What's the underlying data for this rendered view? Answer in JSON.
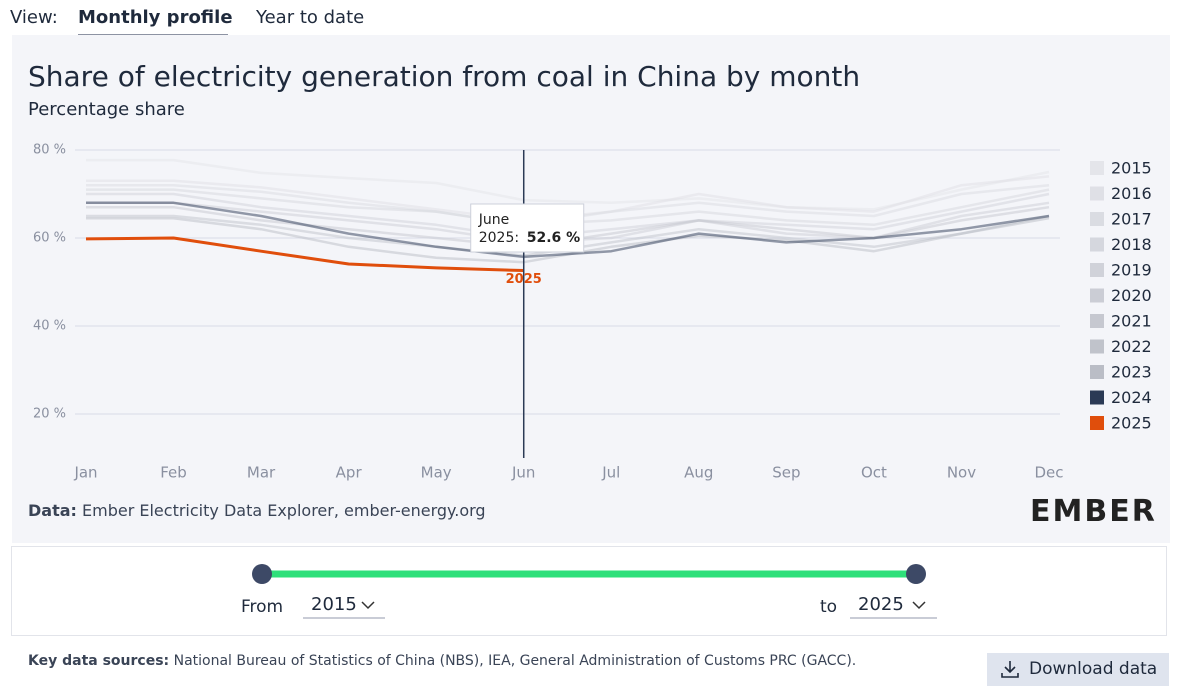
{
  "view": {
    "label": "View:",
    "tabs": [
      "Monthly profile",
      "Year to date"
    ]
  },
  "chart_data": {
    "type": "line",
    "title": "Share of electricity generation from coal in China by month",
    "subtitle": "Percentage share",
    "categories": [
      "Jan",
      "Feb",
      "Mar",
      "Apr",
      "May",
      "Jun",
      "Jul",
      "Aug",
      "Sep",
      "Oct",
      "Nov",
      "Dec"
    ],
    "series": [
      {
        "name": "2015",
        "color": "#e4e5ea",
        "values": [
          77.7,
          77.7,
          74.8,
          73.6,
          72.5,
          68.6,
          68.0,
          69.0,
          67.0,
          66.5,
          71.0,
          75.0
        ]
      },
      {
        "name": "2016",
        "color": "#dfe0e6",
        "values": [
          73,
          73,
          71.5,
          69,
          66.5,
          64,
          66,
          70,
          67,
          66,
          72,
          74
        ]
      },
      {
        "name": "2017",
        "color": "#dadce2",
        "values": [
          72,
          72,
          70.5,
          68,
          66,
          63,
          66,
          68,
          66,
          65,
          70,
          72
        ]
      },
      {
        "name": "2018",
        "color": "#d5d7de",
        "values": [
          71,
          71,
          69,
          67,
          66,
          63,
          64,
          66,
          64,
          63,
          67,
          71
        ]
      },
      {
        "name": "2019",
        "color": "#d0d2d9",
        "values": [
          70,
          70,
          67,
          65,
          63,
          60,
          62,
          64,
          63,
          62,
          66,
          70
        ]
      },
      {
        "name": "2020",
        "color": "#cbcdd5",
        "values": [
          68,
          68,
          66,
          64,
          62,
          59,
          60,
          64,
          61,
          60,
          65,
          68
        ]
      },
      {
        "name": "2021",
        "color": "#c6c8d0",
        "values": [
          67,
          67,
          64,
          62,
          60,
          58,
          61,
          64,
          62,
          60,
          64,
          67
        ]
      },
      {
        "name": "2022",
        "color": "#c0c3cb",
        "values": [
          65,
          65,
          63,
          60,
          58,
          56,
          59,
          62,
          60,
          58,
          61,
          65
        ]
      },
      {
        "name": "2023",
        "color": "#babdc6",
        "values": [
          64.5,
          64.5,
          62,
          58,
          55.5,
          54.5,
          58,
          60.5,
          59.5,
          57,
          61,
          64.5
        ]
      },
      {
        "name": "2024",
        "color": "#2b3a55",
        "values": [
          68,
          68,
          65,
          61,
          58,
          55.7,
          57,
          61,
          59,
          60,
          62,
          65
        ]
      },
      {
        "name": "2025",
        "color": "#e04e0c",
        "values": [
          59.8,
          60.0,
          57.0,
          54.1,
          53.2,
          52.6,
          null,
          null,
          null,
          null,
          null,
          null
        ]
      }
    ],
    "ylim": [
      10,
      80
    ],
    "yticks": [
      {
        "value": 20,
        "label": "20 %"
      },
      {
        "value": 40,
        "label": "40 %"
      },
      {
        "value": 60,
        "label": "60 %"
      },
      {
        "value": 80,
        "label": "80 %"
      }
    ],
    "grid": true,
    "legend": "right",
    "tooltip": {
      "category": "June",
      "series": "2025:",
      "value_label": "52.6 %"
    }
  },
  "source": {
    "label": "Data:",
    "text": "Ember Electricity Data Explorer, ember-energy.org"
  },
  "logo": "EMBER",
  "range": {
    "from_label": "From",
    "from": "2015",
    "to_label": "to",
    "to": "2025"
  },
  "footer": {
    "label": "Key data sources:",
    "text": "National Bureau of Statistics of China (NBS), IEA, General Administration of Customs PRC (GACC)."
  },
  "download": "Download data"
}
